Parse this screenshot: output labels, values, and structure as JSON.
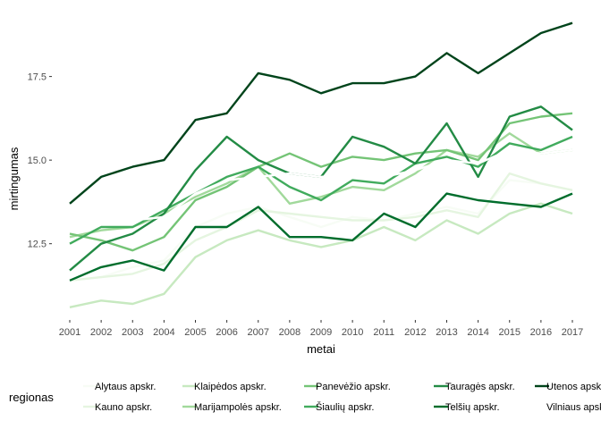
{
  "chart_data": {
    "type": "line",
    "title": "",
    "xlabel": "metai",
    "ylabel": "mirtingumas",
    "x": [
      2001,
      2002,
      2003,
      2004,
      2005,
      2006,
      2007,
      2008,
      2009,
      2010,
      2011,
      2012,
      2013,
      2014,
      2015,
      2016,
      2017
    ],
    "xlim": [
      2001,
      2017
    ],
    "ylim": [
      10.3,
      19.2
    ],
    "y_ticks": [
      12.5,
      15.0,
      17.5
    ],
    "y_tick_labels": [
      "12.5",
      "15.0",
      "17.5"
    ],
    "grid": false,
    "legend": {
      "title": "regionas",
      "position": "bottom"
    },
    "series": [
      {
        "name": "Alytaus apskr.",
        "color": "#f7fcf5",
        "values": [
          11.4,
          11.5,
          11.8,
          12.0,
          13.0,
          13.4,
          13.6,
          13.3,
          13.0,
          13.3,
          13.2,
          13.4,
          13.6,
          13.4,
          14.4,
          14.3,
          14.1
        ]
      },
      {
        "name": "Kauno apskr.",
        "color": "#e5f5e0",
        "values": [
          11.4,
          11.5,
          11.6,
          11.9,
          12.6,
          13.0,
          13.5,
          13.4,
          13.3,
          13.2,
          13.2,
          13.3,
          13.5,
          13.3,
          14.6,
          14.3,
          14.1
        ]
      },
      {
        "name": "Klaipėdos apskr.",
        "color": "#c7e9c0",
        "values": [
          10.6,
          10.8,
          10.7,
          11.0,
          12.1,
          12.6,
          12.9,
          12.6,
          12.4,
          12.6,
          13.0,
          12.6,
          13.2,
          12.8,
          13.4,
          13.7,
          13.4
        ]
      },
      {
        "name": "Marijampolės apskr.",
        "color": "#a1d99b",
        "values": [
          12.7,
          12.9,
          13.0,
          13.4,
          13.9,
          14.3,
          14.8,
          13.7,
          13.9,
          14.2,
          14.1,
          14.6,
          15.3,
          15.1,
          15.8,
          15.2,
          15.3
        ]
      },
      {
        "name": "Panevėžio apskr.",
        "color": "#74c476",
        "values": [
          12.8,
          12.6,
          12.3,
          12.7,
          13.8,
          14.2,
          14.8,
          15.2,
          14.8,
          15.1,
          15.0,
          15.2,
          15.3,
          15.0,
          16.1,
          16.3,
          16.4
        ]
      },
      {
        "name": "Šiaulių apskr.",
        "color": "#41ab5d",
        "values": [
          12.5,
          13.0,
          13.0,
          13.5,
          14.0,
          14.5,
          14.8,
          14.2,
          13.8,
          14.4,
          14.3,
          14.9,
          15.1,
          14.8,
          15.5,
          15.3,
          15.7
        ]
      },
      {
        "name": "Tauragės apskr.",
        "color": "#238b45",
        "values": [
          11.7,
          12.5,
          12.8,
          13.4,
          14.7,
          15.7,
          15.0,
          14.6,
          14.5,
          15.7,
          15.4,
          14.9,
          16.1,
          14.5,
          16.3,
          16.6,
          15.9
        ]
      },
      {
        "name": "Telšių apskr.",
        "color": "#006d2c",
        "values": [
          11.4,
          11.8,
          12.0,
          11.7,
          13.0,
          13.0,
          13.6,
          12.7,
          12.7,
          12.6,
          13.4,
          13.0,
          14.0,
          13.8,
          13.7,
          13.6,
          14.0
        ]
      },
      {
        "name": "Utenos apskr.",
        "color": "#00441b",
        "values": [
          13.7,
          14.5,
          14.8,
          15.0,
          16.2,
          16.4,
          17.6,
          17.4,
          17.0,
          17.3,
          17.3,
          17.5,
          18.2,
          17.6,
          18.2,
          18.8,
          19.1
        ]
      },
      {
        "name": "Vilniaus apskr.",
        "color": "#ffffff",
        "values": [
          13.0,
          13.1,
          13.2,
          13.3,
          14.0,
          14.4,
          14.5,
          14.6,
          14.5,
          14.6,
          14.5,
          14.7,
          15.0,
          14.9,
          15.3,
          15.2,
          15.3
        ]
      }
    ]
  }
}
